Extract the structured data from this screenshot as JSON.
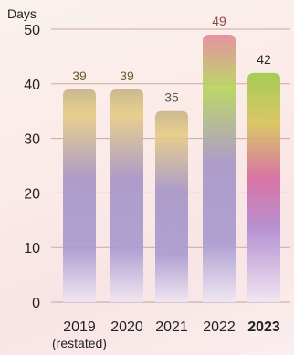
{
  "chart_data": {
    "type": "bar",
    "ylabel": "Days",
    "ylim": [
      0,
      50
    ],
    "yticks": [
      0,
      10,
      20,
      30,
      40,
      50
    ],
    "grid": true,
    "categories": [
      "2019",
      "2020",
      "2021",
      "2022",
      "2023"
    ],
    "category_notes": [
      "(restated)",
      "",
      "",
      "",
      ""
    ],
    "highlight_category": "2023",
    "values": [
      39,
      39,
      35,
      49,
      42
    ],
    "value_label_colors": [
      "#6b5b3a",
      "#6b5b3a",
      "#5a5a3e",
      "#8a4a4a",
      "#222222"
    ],
    "bar_colors": {
      "top": "#e8d08a",
      "middle": "#9a8cc8",
      "bottom": "#e9dff0",
      "highlight_top": "#b8d85a",
      "highlight_middle": "#d06aa0",
      "highlight_lower": "#9a8cc8"
    },
    "gridline_color": "#c9a8a8",
    "baseline_color": "#c9b0b0"
  }
}
